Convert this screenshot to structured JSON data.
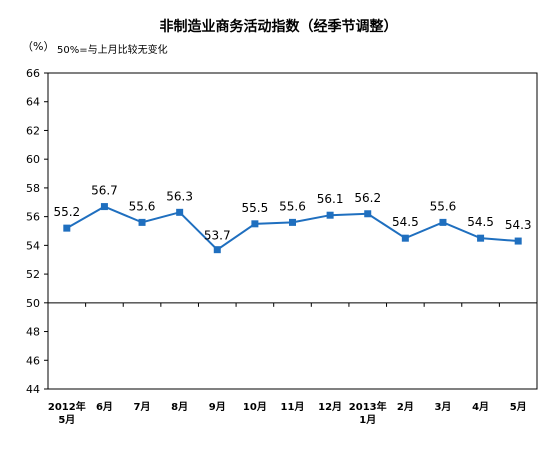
{
  "chart_data": {
    "type": "line",
    "title": "非制造业商务活动指数（经季节调整）",
    "unit": "（%）",
    "note": "50%=与上月比较无变化",
    "categories": [
      [
        "2012年",
        "5月"
      ],
      [
        "6月"
      ],
      [
        "7月"
      ],
      [
        "8月"
      ],
      [
        "9月"
      ],
      [
        "10月"
      ],
      [
        "11月"
      ],
      [
        "12月"
      ],
      [
        "2013年",
        "1月"
      ],
      [
        "2月"
      ],
      [
        "3月"
      ],
      [
        "4月"
      ],
      [
        "5月"
      ]
    ],
    "series": [
      {
        "values": [
          55.2,
          56.7,
          55.6,
          56.3,
          53.7,
          55.5,
          55.6,
          56.1,
          56.2,
          54.5,
          55.6,
          54.5,
          54.3
        ]
      }
    ],
    "data_labels": [
      "55.2",
      "56.7",
      "55.6",
      "56.3",
      "53.7",
      "55.5",
      "55.6",
      "56.1",
      "56.2",
      "54.5",
      "55.6",
      "54.5",
      "54.3"
    ],
    "ylim": [
      44,
      66
    ],
    "yticks": [
      44,
      46,
      48,
      50,
      52,
      54,
      56,
      58,
      60,
      62,
      64,
      66
    ],
    "ytick_labels": [
      "44",
      "46",
      "48",
      "50",
      "52",
      "54",
      "56",
      "58",
      "60",
      "62",
      "64",
      "66"
    ],
    "reference_line": 50,
    "grid": false,
    "legend": "none",
    "colors": {
      "line": "#1f6fbf",
      "marker": "#1f6fbf",
      "axis": "#000000",
      "frame": "#000000"
    }
  }
}
